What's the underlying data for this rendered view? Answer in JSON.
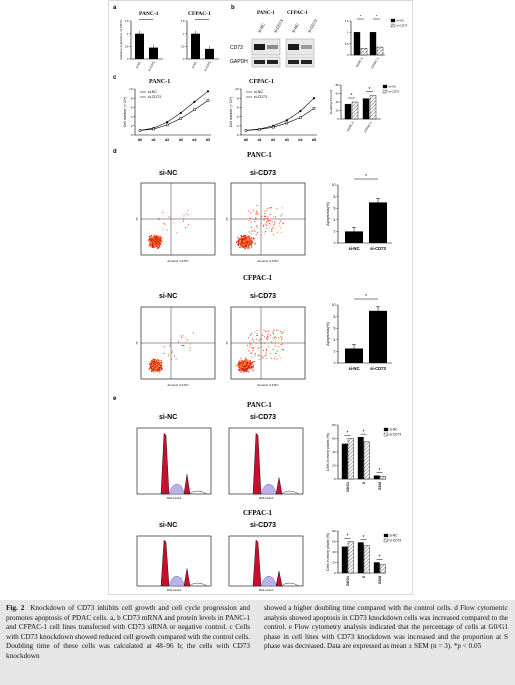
{
  "panel_letters": {
    "a": "a",
    "b": "b",
    "c": "c",
    "d": "d",
    "e": "e"
  },
  "cell_lines": {
    "panc": "PANC-1",
    "cfpac": "CFPAC-1"
  },
  "groups": {
    "nc": "si-NC",
    "cd73": "si-CD73"
  },
  "blot": {
    "cd73": "CD73",
    "gapdh": "GAPDH"
  },
  "axis": {
    "rel_mrna": "Relative expression of CD73",
    "cell_number": "Cell number (× 10⁴)",
    "doubling": "Doubling Time (h)",
    "apoptosis": "Apoptosis(%)",
    "cell_phase": "Cells in every phase (%)",
    "flow_x": "Annexin V-FITC",
    "flow_y": "PI",
    "dna": "DNA content"
  },
  "days": [
    "d0",
    "d1",
    "d2",
    "d3",
    "d4",
    "d5"
  ],
  "phases": [
    "G0/G1",
    "S",
    "G2/M"
  ],
  "star": "*",
  "caption": {
    "fig": "Fig. 2",
    "left": "Knockdown of CD73 inhibits cell growth and cell cycle progression and promotes apoptosis of PDAC cells. a, b CD73 mRNA and protein levels in PANC-1 and CFPAC-1 cell lines transfected with CD73 siRNA or negative control. c Cells with CD73 knockdown showed reduced cell growth compared with the control cells. Doubling time of these cells was calculated at 48–96 h; the cells with CD73 knockdown",
    "right": "showed a higher doubling time compared with the control cells. d Flow cytometric analysis showed apoptosis in CD73 knockdown cells was increased compared to the control. e Flow cytometry analysis indicated that the percentage of cells at G0/G1 phase in cell lines with CD73 knockdown was increased and the proportion at S phase was decreased. Data are expressed as mean ± SEM (n = 3). *p < 0.05"
  },
  "chart_data": [
    {
      "type": "bar",
      "panel": "a",
      "title": "PANC-1",
      "categories": [
        "si-NC",
        "si-CD73"
      ],
      "values": [
        1.0,
        0.45
      ],
      "ylim": [
        0,
        1.5
      ]
    },
    {
      "type": "bar",
      "panel": "a",
      "title": "CFPAC-1",
      "categories": [
        "si-NC",
        "si-CD73"
      ],
      "values": [
        1.0,
        0.4
      ],
      "ylim": [
        0,
        1.5
      ]
    },
    {
      "type": "bar",
      "panel": "b",
      "categories": [
        "PANC-1",
        "CFPAC-1"
      ],
      "series": [
        {
          "name": "si-NC",
          "values": [
            1.0,
            1.0
          ]
        },
        {
          "name": "si-CD73",
          "values": [
            0.3,
            0.35
          ]
        }
      ],
      "ylim": [
        0,
        1.5
      ]
    },
    {
      "type": "line",
      "panel": "c",
      "title": "PANC-1",
      "x": [
        "d0",
        "d1",
        "d2",
        "d3",
        "d4",
        "d5"
      ],
      "series": [
        {
          "name": "si-NC",
          "values": [
            1,
            1.5,
            2.8,
            4.8,
            7.2,
            9.5
          ]
        },
        {
          "name": "si-CD73",
          "values": [
            1,
            1.3,
            2.2,
            3.6,
            5.5,
            7.5
          ]
        }
      ],
      "ylim": [
        0,
        10
      ]
    },
    {
      "type": "line",
      "panel": "c",
      "title": "CFPAC-1",
      "x": [
        "d0",
        "d1",
        "d2",
        "d3",
        "d4",
        "d5"
      ],
      "series": [
        {
          "name": "si-NC",
          "values": [
            1,
            1.3,
            2.0,
            3.2,
            5.2,
            8.0
          ]
        },
        {
          "name": "si-CD73",
          "values": [
            1,
            1.2,
            1.7,
            2.6,
            3.8,
            5.8
          ]
        }
      ],
      "ylim": [
        0,
        10
      ]
    },
    {
      "type": "bar",
      "panel": "c",
      "categories": [
        "PANC-1",
        "CFPAC-1"
      ],
      "series": [
        {
          "name": "si-NC",
          "values": [
            35,
            48
          ]
        },
        {
          "name": "si-CD73",
          "values": [
            40,
            55
          ]
        }
      ],
      "ylim": [
        0,
        80
      ]
    },
    {
      "type": "bar",
      "panel": "d",
      "title": "PANC-1",
      "categories": [
        "si-NC",
        "si-CD73"
      ],
      "values": [
        2,
        7
      ],
      "ylim": [
        0,
        10
      ]
    },
    {
      "type": "bar",
      "panel": "d",
      "title": "CFPAC-1",
      "categories": [
        "si-NC",
        "si-CD73"
      ],
      "values": [
        2.5,
        9
      ],
      "ylim": [
        0,
        10
      ]
    },
    {
      "type": "bar",
      "panel": "e",
      "title": "PANC-1",
      "categories": [
        "G0/G1",
        "S",
        "G2/M"
      ],
      "series": [
        {
          "name": "si-NC",
          "values": [
            52,
            62,
            5
          ]
        },
        {
          "name": "si-CD73",
          "values": [
            60,
            55,
            4
          ]
        }
      ],
      "ylim": [
        0,
        80
      ]
    },
    {
      "type": "bar",
      "panel": "e",
      "title": "CFPAC-1",
      "categories": [
        "G0/G1",
        "S",
        "G2/M"
      ],
      "series": [
        {
          "name": "si-NC",
          "values": [
            50,
            58,
            20
          ]
        },
        {
          "name": "si-CD73",
          "values": [
            60,
            52,
            16
          ]
        }
      ],
      "ylim": [
        0,
        80
      ]
    }
  ]
}
